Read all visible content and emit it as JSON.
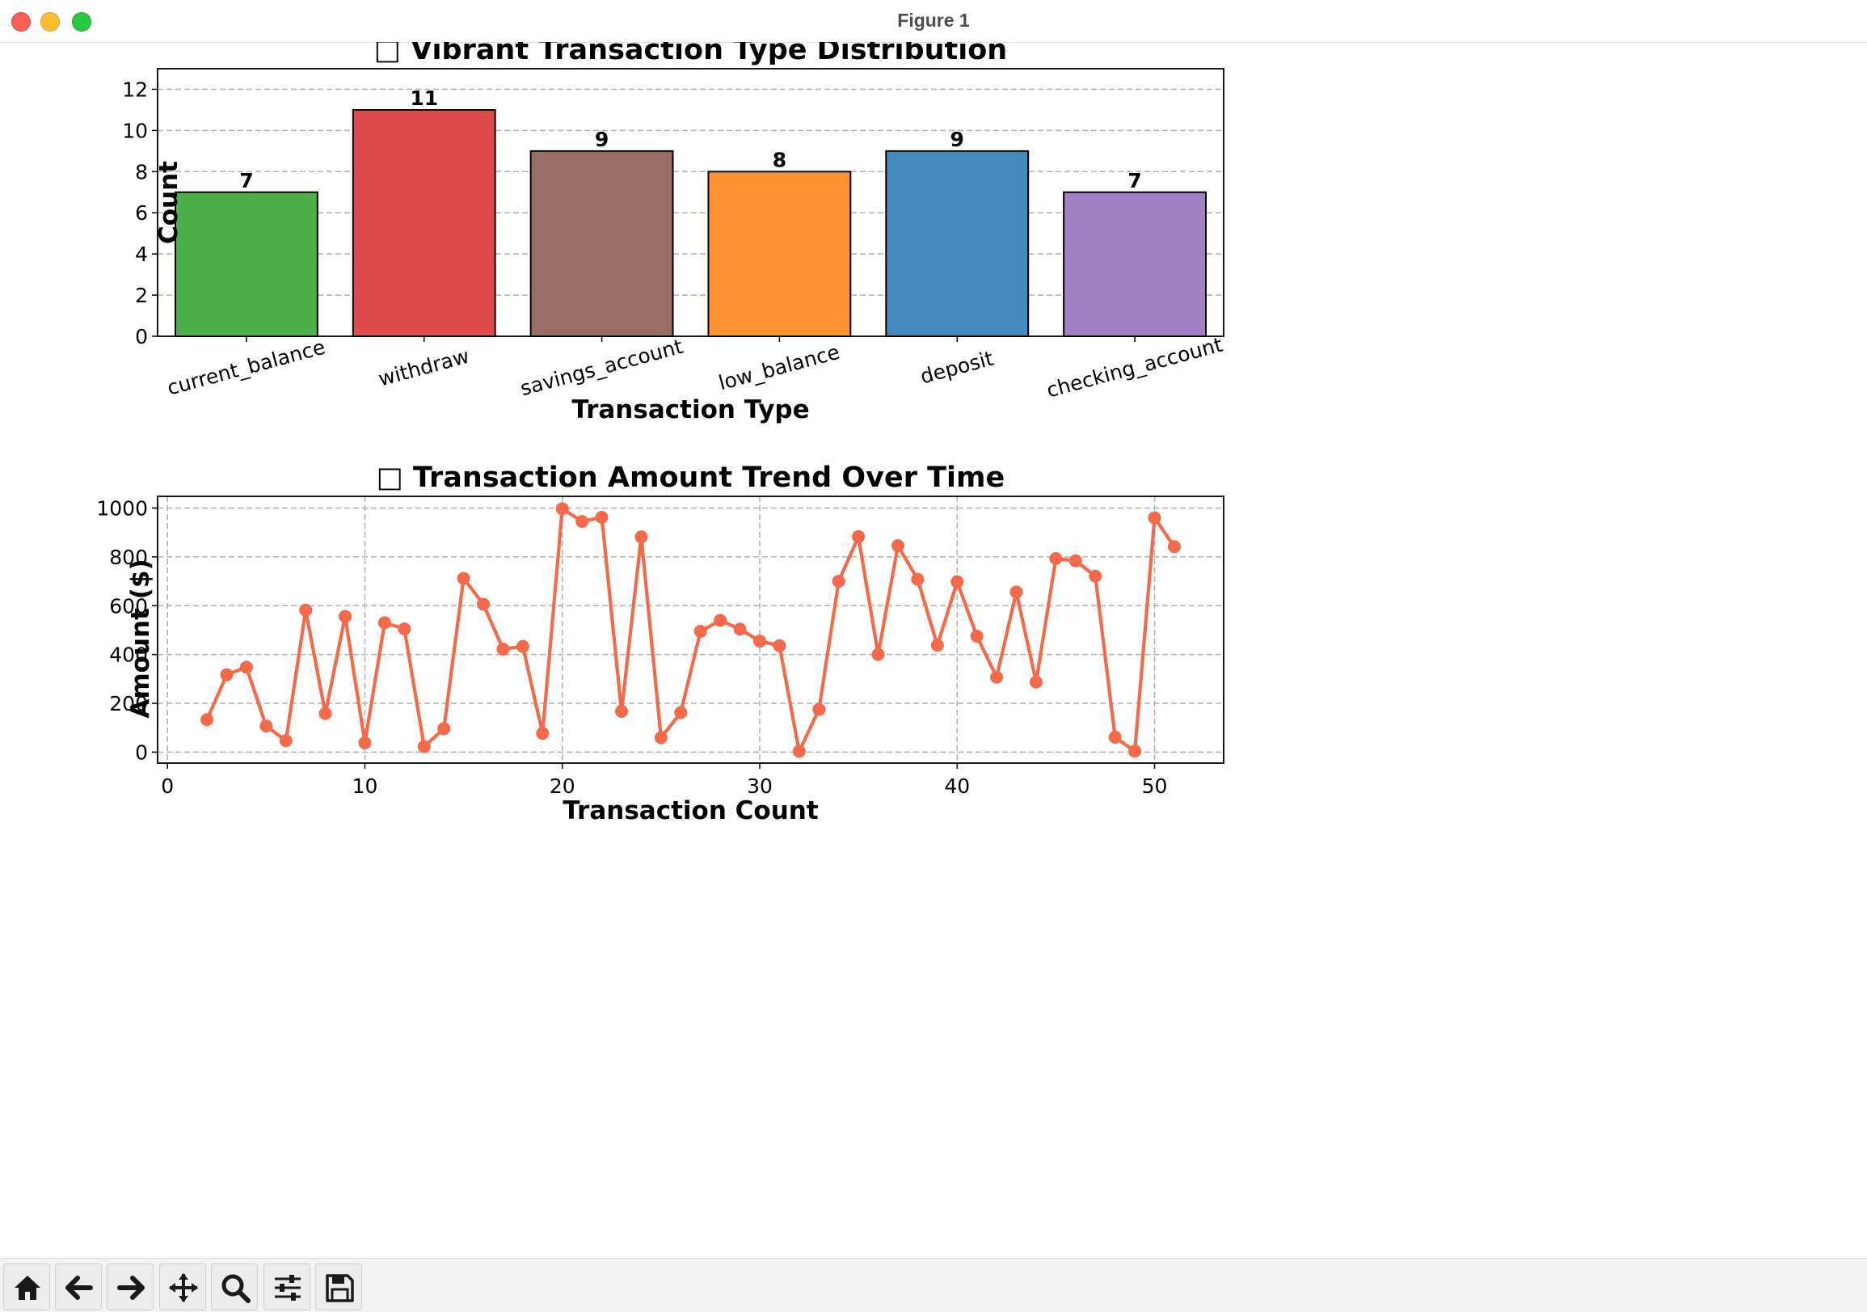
{
  "window": {
    "title": "Figure 1"
  },
  "toolbar": {
    "buttons": [
      {
        "name": "home-button",
        "icon": "home-icon"
      },
      {
        "name": "back-button",
        "icon": "arrow-left-icon"
      },
      {
        "name": "forward-button",
        "icon": "arrow-right-icon"
      },
      {
        "name": "pan-button",
        "icon": "move-icon"
      },
      {
        "name": "zoom-button",
        "icon": "magnifier-icon"
      },
      {
        "name": "configure-subplots-button",
        "icon": "sliders-icon"
      },
      {
        "name": "save-button",
        "icon": "floppy-disk-icon"
      }
    ]
  },
  "chart_data": [
    {
      "type": "bar",
      "title": "□ Vibrant Transaction Type Distribution",
      "xlabel": "Transaction Type",
      "ylabel": "Count",
      "categories": [
        "current_balance",
        "withdraw",
        "savings_account",
        "low_balance",
        "deposit",
        "checking_account"
      ],
      "values": [
        7,
        11,
        9,
        8,
        9,
        7
      ],
      "colors": [
        "#4daf4a",
        "#dc4a4c",
        "#9a6e65",
        "#ff9233",
        "#438bbe",
        "#a37fc6"
      ],
      "yticks": [
        0,
        2,
        4,
        6,
        8,
        10,
        12
      ],
      "ylim": [
        0,
        13
      ],
      "grid": "y-dashed",
      "data_labels": true
    },
    {
      "type": "line",
      "title": "□ Transaction Amount Trend Over Time",
      "xlabel": "Transaction Count",
      "ylabel": "Amount ($)",
      "color": "#f4694a",
      "x": [
        2,
        3,
        4,
        5,
        6,
        7,
        8,
        9,
        10,
        11,
        12,
        13,
        14,
        15,
        16,
        17,
        18,
        19,
        20,
        21,
        22,
        23,
        24,
        25,
        26,
        27,
        28,
        29,
        30,
        31,
        32,
        33,
        34,
        35,
        36,
        37,
        38,
        39,
        40,
        41,
        42,
        43,
        44,
        45,
        46,
        47,
        48,
        49,
        50,
        51
      ],
      "y": [
        133,
        317,
        348,
        107,
        47,
        582,
        158,
        556,
        38,
        530,
        505,
        23,
        96,
        712,
        606,
        422,
        433,
        77,
        997,
        945,
        962,
        167,
        882,
        59,
        162,
        495,
        540,
        504,
        455,
        436,
        3,
        175,
        700,
        883,
        400,
        846,
        708,
        438,
        698,
        475,
        307,
        656,
        287,
        793,
        784,
        721,
        61,
        4,
        960,
        842
      ],
      "xticks": [
        0,
        10,
        20,
        30,
        40,
        50
      ],
      "yticks": [
        0,
        200,
        400,
        600,
        800,
        1000
      ],
      "xlim": [
        -0.5,
        53.5
      ],
      "ylim": [
        -45,
        1048
      ],
      "grid": "both-dashed"
    }
  ]
}
